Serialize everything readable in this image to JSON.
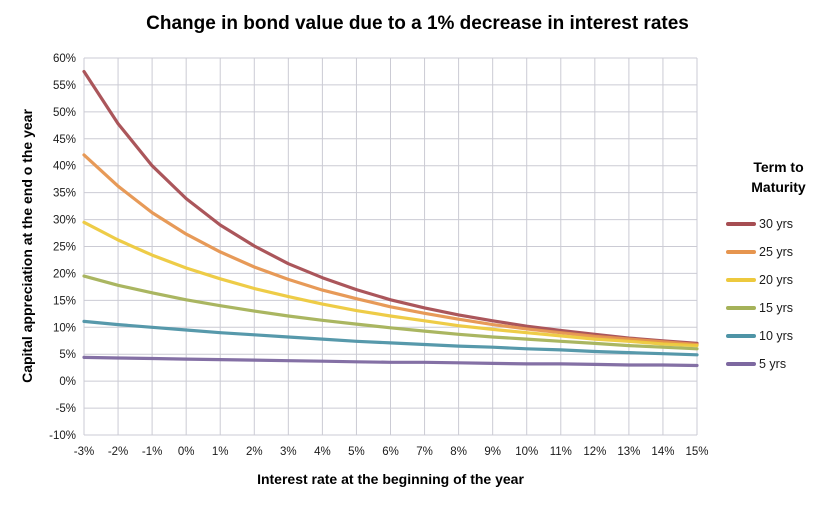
{
  "title": "Change in bond value due to a 1% decrease in interest rates",
  "legend": {
    "title": "Term to Maturity"
  },
  "colors": {
    "background": "#FFFFFF",
    "grid": "#CBCBD4",
    "tick_text": "#1A1A1A",
    "title_text": "#000000"
  },
  "chart_data": {
    "type": "line",
    "title": "Change in bond value due to a 1% decrease in interest rates",
    "xlabel": "Interest rate at the beginning of the year",
    "ylabel": "Capital appreciation at the end o the year",
    "categories": [
      "-3%",
      "-2%",
      "-1%",
      "0%",
      "1%",
      "2%",
      "3%",
      "4%",
      "5%",
      "6%",
      "7%",
      "8%",
      "9%",
      "10%",
      "11%",
      "12%",
      "13%",
      "14%",
      "15%"
    ],
    "x_values": [
      -3,
      -2,
      -1,
      0,
      1,
      2,
      3,
      4,
      5,
      6,
      7,
      8,
      9,
      10,
      11,
      12,
      13,
      14,
      15
    ],
    "ylim": [
      -10,
      60
    ],
    "ytick_step": 5,
    "ytick_suffix": "%",
    "grid": true,
    "legend_title": "Term to Maturity",
    "legend_position": "right",
    "series": [
      {
        "name": "30 yrs",
        "color": "#A64D52",
        "values": [
          57.5,
          47.8,
          40.0,
          33.9,
          29.0,
          25.1,
          21.8,
          19.2,
          17.0,
          15.1,
          13.6,
          12.3,
          11.2,
          10.2,
          9.4,
          8.7,
          8.0,
          7.5,
          7.0
        ]
      },
      {
        "name": "25 yrs",
        "color": "#E6954F",
        "values": [
          42.0,
          36.2,
          31.3,
          27.3,
          24.0,
          21.2,
          18.9,
          16.9,
          15.3,
          13.8,
          12.6,
          11.5,
          10.5,
          9.7,
          9.0,
          8.3,
          7.8,
          7.3,
          6.8
        ]
      },
      {
        "name": "20 yrs",
        "color": "#EDC93D",
        "values": [
          29.5,
          26.2,
          23.4,
          21.0,
          19.0,
          17.2,
          15.7,
          14.3,
          13.1,
          12.1,
          11.2,
          10.3,
          9.6,
          9.0,
          8.4,
          7.8,
          7.4,
          6.9,
          6.6
        ]
      },
      {
        "name": "15 yrs",
        "color": "#A5B259",
        "values": [
          19.5,
          17.8,
          16.4,
          15.1,
          14.0,
          13.0,
          12.1,
          11.3,
          10.6,
          9.9,
          9.3,
          8.7,
          8.2,
          7.8,
          7.4,
          7.0,
          6.6,
          6.3,
          6.0
        ]
      },
      {
        "name": "10 yrs",
        "color": "#4E94A6",
        "values": [
          11.1,
          10.5,
          10.0,
          9.5,
          9.0,
          8.6,
          8.2,
          7.8,
          7.4,
          7.1,
          6.8,
          6.5,
          6.3,
          6.0,
          5.8,
          5.5,
          5.3,
          5.1,
          4.9
        ]
      },
      {
        "name": "5 yrs",
        "color": "#7D68A0",
        "values": [
          4.4,
          4.3,
          4.2,
          4.1,
          4.0,
          3.9,
          3.8,
          3.7,
          3.6,
          3.5,
          3.5,
          3.4,
          3.3,
          3.2,
          3.2,
          3.1,
          3.0,
          3.0,
          2.9
        ]
      }
    ]
  }
}
